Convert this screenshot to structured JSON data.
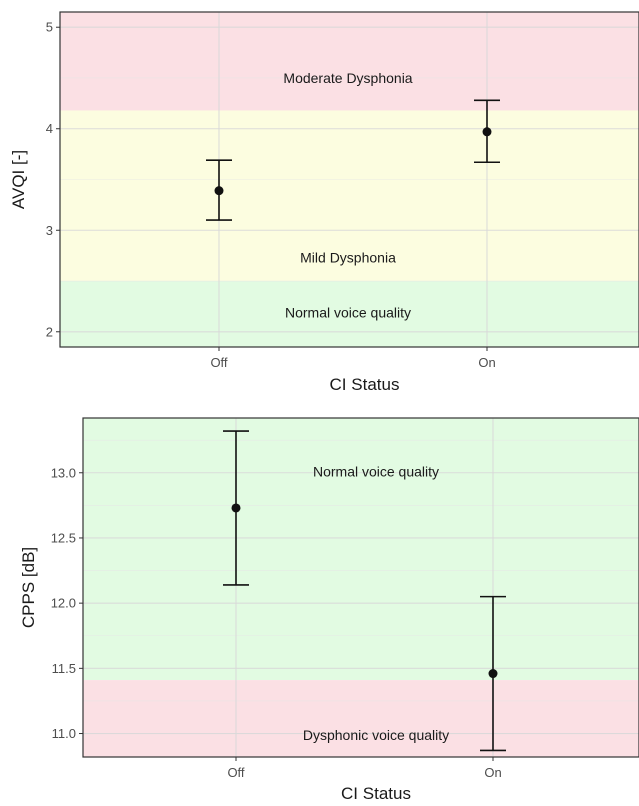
{
  "chart_data": [
    {
      "type": "scatter",
      "subtype": "point-with-error-bars",
      "xlabel": "CI Status",
      "ylabel": "AVQI [-]",
      "categories": [
        "Off",
        "On"
      ],
      "ylim": [
        1.85,
        5.15
      ],
      "yticks": [
        2,
        3,
        4,
        5
      ],
      "grid": true,
      "points": [
        {
          "x": "Off",
          "y": 3.39,
          "lower": 3.1,
          "upper": 3.69
        },
        {
          "x": "On",
          "y": 3.97,
          "lower": 3.67,
          "upper": 4.28
        }
      ],
      "bands": [
        {
          "label": "Moderate Dysphonia",
          "from": 4.18,
          "to": 5.15,
          "color": "#fbe0e4",
          "label_y": 4.5
        },
        {
          "label": "Mild Dysphonia",
          "from": 2.5,
          "to": 4.18,
          "color": "#fcfde0",
          "label_y": 2.73
        },
        {
          "label": "Normal voice quality",
          "from": 1.85,
          "to": 2.5,
          "color": "#e2fbe2",
          "label_y": 2.19
        }
      ]
    },
    {
      "type": "scatter",
      "subtype": "point-with-error-bars",
      "xlabel": "CI Status",
      "ylabel": "CPPS [dB]",
      "categories": [
        "Off",
        "On"
      ],
      "ylim": [
        10.82,
        13.42
      ],
      "yticks": [
        11.0,
        11.5,
        12.0,
        12.5,
        13.0
      ],
      "ytick_labels": [
        "11.0",
        "11.5",
        "12.0",
        "12.5",
        "13.0"
      ],
      "grid": true,
      "points": [
        {
          "x": "Off",
          "y": 12.73,
          "lower": 12.14,
          "upper": 13.32
        },
        {
          "x": "On",
          "y": 11.46,
          "lower": 10.87,
          "upper": 12.05
        }
      ],
      "bands": [
        {
          "label": "Normal voice quality",
          "from": 11.41,
          "to": 13.42,
          "color": "#e2fbe2",
          "label_y": 13.01
        },
        {
          "label": "Dysphonic voice quality",
          "from": 10.82,
          "to": 11.41,
          "color": "#fbe0e4",
          "label_y": 10.99
        }
      ]
    }
  ]
}
